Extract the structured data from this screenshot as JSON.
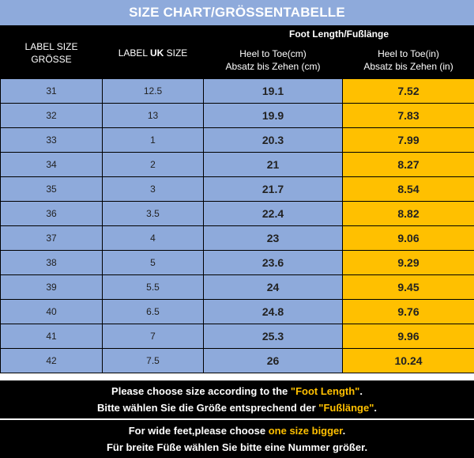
{
  "title": "SIZE CHART/GRÖSSENTABELLE",
  "header": {
    "label_size_line1": "LABEL SIZE",
    "label_size_line2": "GRÖSSE",
    "uk_prefix": "LABEL ",
    "uk_bold": "UK",
    "uk_suffix": " SIZE",
    "foot_length": "Foot Length/Fußlänge",
    "cm_line1": "Heel to Toe(cm)",
    "cm_line2": "Absatz bis Zehen (cm)",
    "in_line1": "Heel to Toe(in)",
    "in_line2": "Absatz bis Zehen (in)"
  },
  "rows": [
    {
      "label": "31",
      "uk": "12.5",
      "cm": "19.1",
      "in": "7.52"
    },
    {
      "label": "32",
      "uk": "13",
      "cm": "19.9",
      "in": "7.83"
    },
    {
      "label": "33",
      "uk": "1",
      "cm": "20.3",
      "in": "7.99"
    },
    {
      "label": "34",
      "uk": "2",
      "cm": "21",
      "in": "8.27"
    },
    {
      "label": "35",
      "uk": "3",
      "cm": "21.7",
      "in": "8.54"
    },
    {
      "label": "36",
      "uk": "3.5",
      "cm": "22.4",
      "in": "8.82"
    },
    {
      "label": "37",
      "uk": "4",
      "cm": "23",
      "in": "9.06"
    },
    {
      "label": "38",
      "uk": "5",
      "cm": "23.6",
      "in": "9.29"
    },
    {
      "label": "39",
      "uk": "5.5",
      "cm": "24",
      "in": "9.45"
    },
    {
      "label": "40",
      "uk": "6.5",
      "cm": "24.8",
      "in": "9.76"
    },
    {
      "label": "41",
      "uk": "7",
      "cm": "25.3",
      "in": "9.96"
    },
    {
      "label": "42",
      "uk": "7.5",
      "cm": "26",
      "in": "10.24"
    }
  ],
  "notes": {
    "line1_prefix": "Please choose size according to the ",
    "line1_highlight": "\"Foot Length\"",
    "line1_suffix": ".",
    "line2_prefix": "Bitte wählen Sie die Größe entsprechend der ",
    "line2_highlight": "\"Fußlänge\"",
    "line2_suffix": ".",
    "line3_prefix": "For wide feet,please choose ",
    "line3_highlight": "one size bigger",
    "line3_suffix": ".",
    "line4": "Für breite Füße wählen Sie bitte eine Nummer größer."
  },
  "colors": {
    "header_blue": "#8eaadb",
    "cell_blue": "#8eaadb",
    "inch_yellow": "#ffc000",
    "header_black": "#000000",
    "highlight_text": "#ffc000"
  }
}
